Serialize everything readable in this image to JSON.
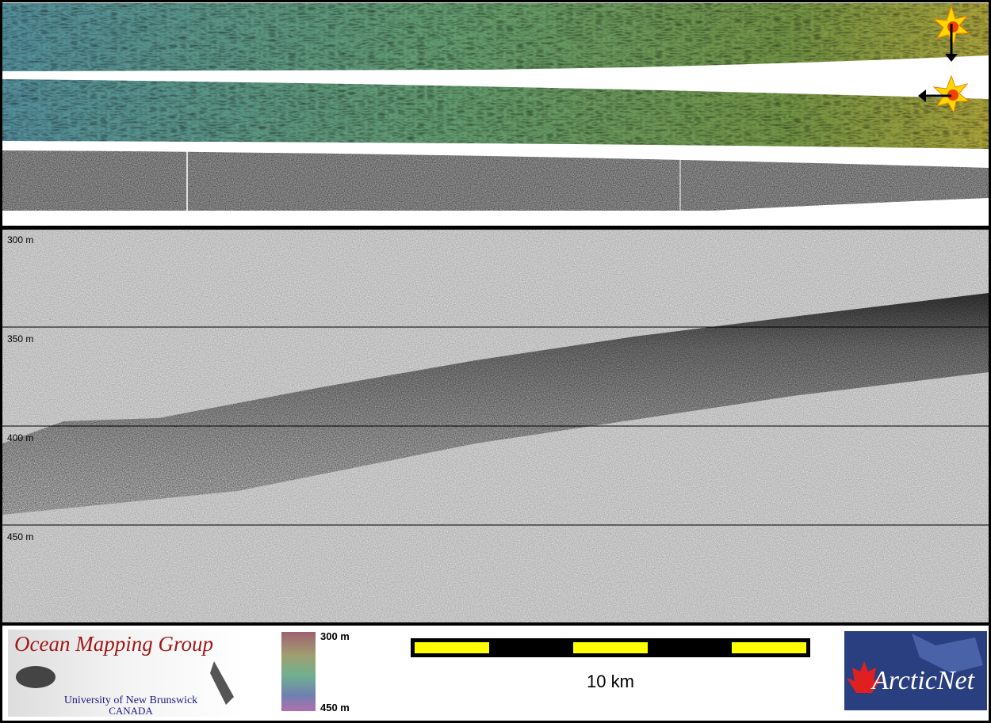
{
  "echogram": {
    "depth_labels": [
      "300 m",
      "350 m",
      "400 m",
      "450 m"
    ]
  },
  "logo": {
    "title": "Ocean Mapping Group",
    "university": "University of New Brunswick",
    "country": "CANADA"
  },
  "colorbar": {
    "top": "300 m",
    "bottom": "450 m"
  },
  "scale_bar": {
    "label": "10 km"
  },
  "partner": {
    "name": "ArcticNet"
  }
}
